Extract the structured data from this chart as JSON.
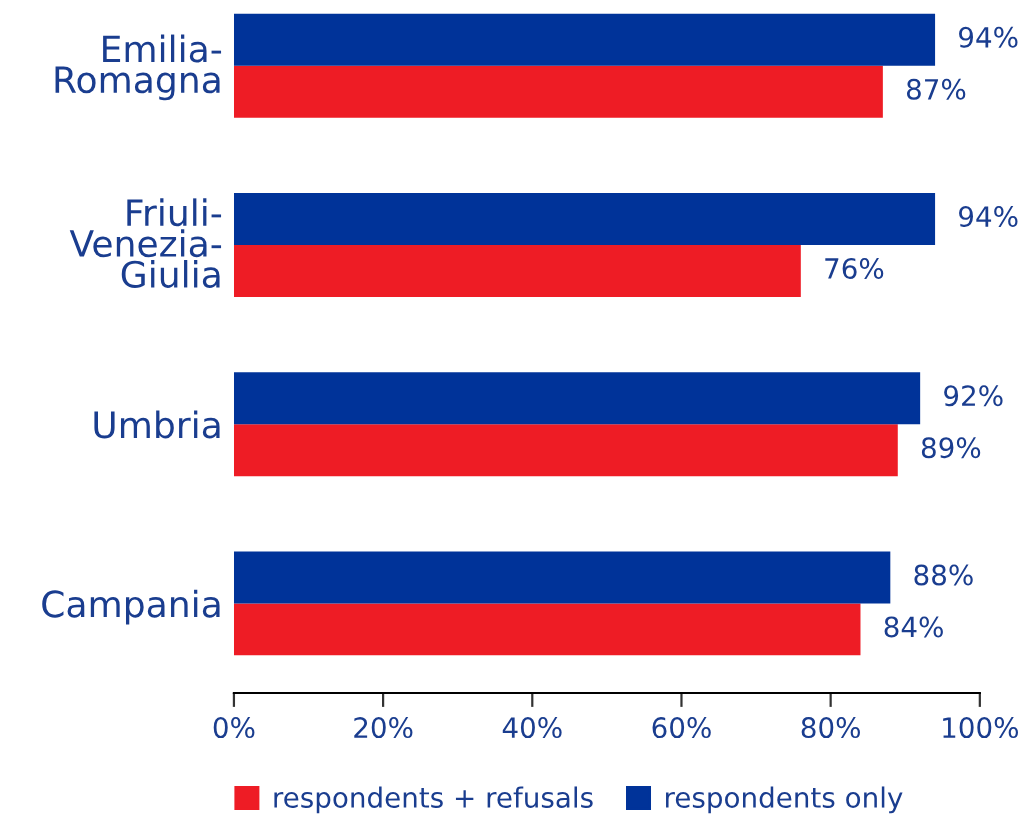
{
  "chart_data": {
    "type": "bar",
    "orientation": "horizontal",
    "categories": [
      "Emilia-\nRomagna",
      "Friuli-\nVenezia-\nGiulia",
      "Umbria",
      "Campania"
    ],
    "series": [
      {
        "name": "respondents + refusals",
        "color": "#ee1c25",
        "values": [
          87,
          76,
          89,
          84
        ],
        "value_labels": [
          "87%",
          "76%",
          "89%",
          "84%"
        ]
      },
      {
        "name": "respondents only",
        "color": "#003399",
        "values": [
          94,
          94,
          92,
          88
        ],
        "value_labels": [
          "94%",
          "94%",
          "92%",
          "88%"
        ]
      }
    ],
    "xlim": [
      0,
      100
    ],
    "xticks": [
      {
        "value": 0,
        "label": "0%"
      },
      {
        "value": 20,
        "label": "20%"
      },
      {
        "value": 40,
        "label": "40%"
      },
      {
        "value": 60,
        "label": "60%"
      },
      {
        "value": 80,
        "label": "80%"
      },
      {
        "value": 100,
        "label": "100%"
      }
    ],
    "grid": false,
    "legend": "bottom"
  }
}
